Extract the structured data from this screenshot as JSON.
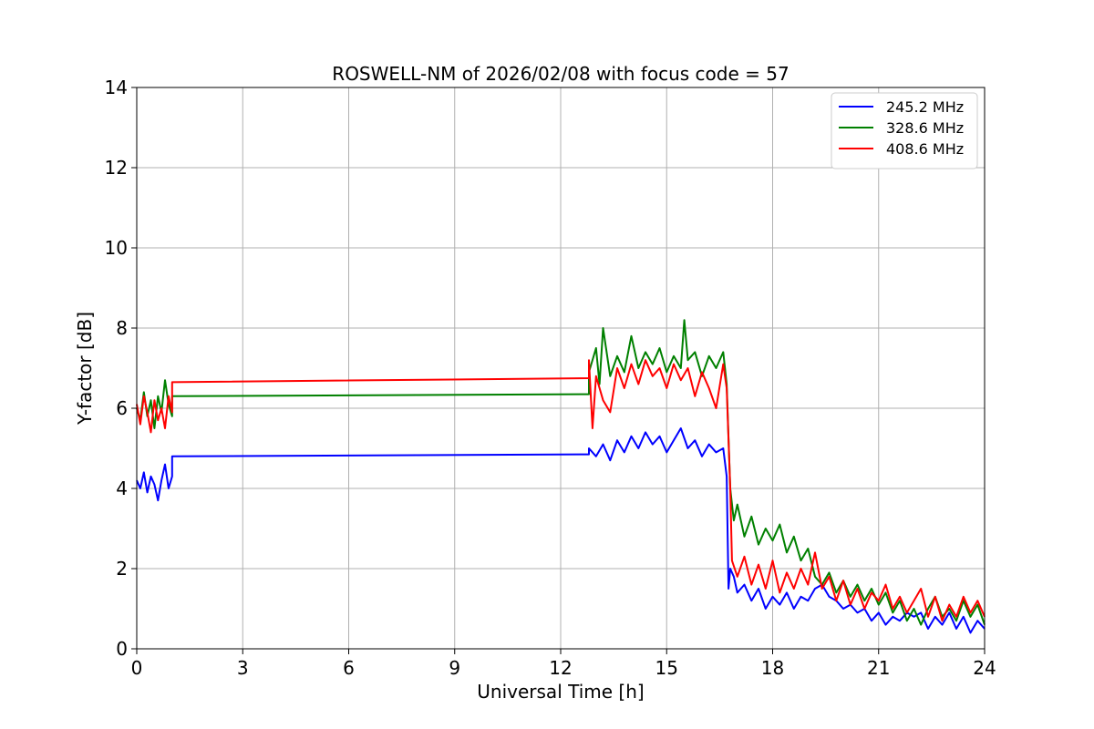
{
  "chart_data": {
    "type": "line",
    "title": "ROSWELL-NM of 2026/02/08 with focus code = 57",
    "xlabel": "Universal Time [h]",
    "ylabel": "Y-factor [dB]",
    "xlim": [
      0,
      24
    ],
    "ylim": [
      0,
      14
    ],
    "xticks": [
      0,
      3,
      6,
      9,
      12,
      15,
      18,
      21,
      24
    ],
    "yticks": [
      0,
      2,
      4,
      6,
      8,
      10,
      12,
      14
    ],
    "grid": true,
    "legend_position": "top-right",
    "series": [
      {
        "name": "245.2 MHz",
        "color": "#0000ff",
        "points": [
          [
            0.0,
            4.2
          ],
          [
            0.1,
            4.0
          ],
          [
            0.2,
            4.4
          ],
          [
            0.3,
            3.9
          ],
          [
            0.4,
            4.3
          ],
          [
            0.5,
            4.1
          ],
          [
            0.6,
            3.7
          ],
          [
            0.7,
            4.2
          ],
          [
            0.8,
            4.6
          ],
          [
            0.9,
            4.0
          ],
          [
            1.0,
            4.3
          ],
          [
            1.0,
            4.8
          ],
          [
            12.8,
            4.85
          ],
          [
            12.8,
            5.0
          ],
          [
            13.0,
            4.8
          ],
          [
            13.2,
            5.1
          ],
          [
            13.4,
            4.7
          ],
          [
            13.6,
            5.2
          ],
          [
            13.8,
            4.9
          ],
          [
            14.0,
            5.3
          ],
          [
            14.2,
            5.0
          ],
          [
            14.4,
            5.4
          ],
          [
            14.6,
            5.1
          ],
          [
            14.8,
            5.3
          ],
          [
            15.0,
            4.9
          ],
          [
            15.2,
            5.2
          ],
          [
            15.4,
            5.5
          ],
          [
            15.6,
            5.0
          ],
          [
            15.8,
            5.2
          ],
          [
            16.0,
            4.8
          ],
          [
            16.2,
            5.1
          ],
          [
            16.4,
            4.9
          ],
          [
            16.6,
            5.0
          ],
          [
            16.7,
            4.3
          ],
          [
            16.75,
            1.5
          ],
          [
            16.8,
            2.0
          ],
          [
            16.9,
            1.8
          ],
          [
            17.0,
            1.4
          ],
          [
            17.2,
            1.6
          ],
          [
            17.4,
            1.2
          ],
          [
            17.6,
            1.5
          ],
          [
            17.8,
            1.0
          ],
          [
            18.0,
            1.3
          ],
          [
            18.2,
            1.1
          ],
          [
            18.4,
            1.4
          ],
          [
            18.6,
            1.0
          ],
          [
            18.8,
            1.3
          ],
          [
            19.0,
            1.2
          ],
          [
            19.2,
            1.5
          ],
          [
            19.4,
            1.6
          ],
          [
            19.6,
            1.3
          ],
          [
            19.8,
            1.2
          ],
          [
            20.0,
            1.0
          ],
          [
            20.2,
            1.1
          ],
          [
            20.4,
            0.9
          ],
          [
            20.6,
            1.0
          ],
          [
            20.8,
            0.7
          ],
          [
            21.0,
            0.9
          ],
          [
            21.2,
            0.6
          ],
          [
            21.4,
            0.8
          ],
          [
            21.6,
            0.7
          ],
          [
            21.8,
            0.9
          ],
          [
            22.0,
            0.8
          ],
          [
            22.2,
            0.9
          ],
          [
            22.4,
            0.5
          ],
          [
            22.6,
            0.8
          ],
          [
            22.8,
            0.6
          ],
          [
            23.0,
            0.9
          ],
          [
            23.2,
            0.5
          ],
          [
            23.4,
            0.8
          ],
          [
            23.6,
            0.4
          ],
          [
            23.8,
            0.7
          ],
          [
            24.0,
            0.5
          ]
        ]
      },
      {
        "name": "328.6 MHz",
        "color": "#008000",
        "points": [
          [
            0.0,
            6.0
          ],
          [
            0.1,
            5.7
          ],
          [
            0.2,
            6.4
          ],
          [
            0.3,
            5.8
          ],
          [
            0.4,
            6.2
          ],
          [
            0.5,
            5.5
          ],
          [
            0.6,
            6.3
          ],
          [
            0.7,
            5.9
          ],
          [
            0.8,
            6.7
          ],
          [
            0.9,
            6.1
          ],
          [
            1.0,
            5.8
          ],
          [
            1.0,
            6.3
          ],
          [
            12.8,
            6.35
          ],
          [
            12.8,
            6.9
          ],
          [
            13.0,
            7.5
          ],
          [
            13.1,
            6.6
          ],
          [
            13.2,
            8.0
          ],
          [
            13.4,
            6.8
          ],
          [
            13.6,
            7.3
          ],
          [
            13.8,
            6.9
          ],
          [
            14.0,
            7.8
          ],
          [
            14.2,
            7.0
          ],
          [
            14.4,
            7.4
          ],
          [
            14.6,
            7.1
          ],
          [
            14.8,
            7.5
          ],
          [
            15.0,
            6.9
          ],
          [
            15.2,
            7.3
          ],
          [
            15.4,
            7.0
          ],
          [
            15.5,
            8.2
          ],
          [
            15.6,
            7.2
          ],
          [
            15.8,
            7.4
          ],
          [
            16.0,
            6.8
          ],
          [
            16.2,
            7.3
          ],
          [
            16.4,
            7.0
          ],
          [
            16.6,
            7.4
          ],
          [
            16.7,
            6.6
          ],
          [
            16.8,
            4.0
          ],
          [
            16.9,
            3.2
          ],
          [
            17.0,
            3.6
          ],
          [
            17.2,
            2.8
          ],
          [
            17.4,
            3.3
          ],
          [
            17.6,
            2.6
          ],
          [
            17.8,
            3.0
          ],
          [
            18.0,
            2.7
          ],
          [
            18.2,
            3.1
          ],
          [
            18.4,
            2.4
          ],
          [
            18.6,
            2.8
          ],
          [
            18.8,
            2.2
          ],
          [
            19.0,
            2.5
          ],
          [
            19.2,
            1.8
          ],
          [
            19.4,
            1.6
          ],
          [
            19.6,
            1.9
          ],
          [
            19.8,
            1.4
          ],
          [
            20.0,
            1.7
          ],
          [
            20.2,
            1.3
          ],
          [
            20.4,
            1.6
          ],
          [
            20.6,
            1.2
          ],
          [
            20.8,
            1.5
          ],
          [
            21.0,
            1.1
          ],
          [
            21.2,
            1.4
          ],
          [
            21.4,
            0.9
          ],
          [
            21.6,
            1.2
          ],
          [
            21.8,
            0.7
          ],
          [
            22.0,
            1.0
          ],
          [
            22.2,
            0.6
          ],
          [
            22.4,
            1.0
          ],
          [
            22.6,
            1.3
          ],
          [
            22.8,
            0.8
          ],
          [
            23.0,
            1.0
          ],
          [
            23.2,
            0.7
          ],
          [
            23.4,
            1.2
          ],
          [
            23.6,
            0.8
          ],
          [
            23.8,
            1.1
          ],
          [
            24.0,
            0.6
          ]
        ]
      },
      {
        "name": "408.6 MHz",
        "color": "#ff0000",
        "points": [
          [
            0.0,
            6.1
          ],
          [
            0.1,
            5.6
          ],
          [
            0.2,
            6.3
          ],
          [
            0.3,
            5.9
          ],
          [
            0.4,
            5.4
          ],
          [
            0.5,
            6.2
          ],
          [
            0.6,
            5.7
          ],
          [
            0.7,
            6.0
          ],
          [
            0.8,
            5.5
          ],
          [
            0.9,
            6.3
          ],
          [
            1.0,
            5.9
          ],
          [
            1.0,
            6.65
          ],
          [
            12.8,
            6.75
          ],
          [
            12.8,
            7.2
          ],
          [
            12.9,
            5.5
          ],
          [
            13.0,
            6.8
          ],
          [
            13.2,
            6.2
          ],
          [
            13.4,
            5.9
          ],
          [
            13.6,
            7.0
          ],
          [
            13.8,
            6.5
          ],
          [
            14.0,
            7.1
          ],
          [
            14.2,
            6.6
          ],
          [
            14.4,
            7.2
          ],
          [
            14.6,
            6.8
          ],
          [
            14.8,
            7.0
          ],
          [
            15.0,
            6.5
          ],
          [
            15.2,
            7.1
          ],
          [
            15.4,
            6.7
          ],
          [
            15.6,
            7.0
          ],
          [
            15.8,
            6.3
          ],
          [
            16.0,
            6.9
          ],
          [
            16.2,
            6.5
          ],
          [
            16.4,
            6.0
          ],
          [
            16.6,
            7.1
          ],
          [
            16.7,
            6.5
          ],
          [
            16.8,
            4.0
          ],
          [
            16.85,
            2.2
          ],
          [
            17.0,
            1.8
          ],
          [
            17.2,
            2.3
          ],
          [
            17.4,
            1.6
          ],
          [
            17.6,
            2.1
          ],
          [
            17.8,
            1.5
          ],
          [
            18.0,
            2.2
          ],
          [
            18.2,
            1.4
          ],
          [
            18.4,
            1.9
          ],
          [
            18.6,
            1.5
          ],
          [
            18.8,
            2.0
          ],
          [
            19.0,
            1.6
          ],
          [
            19.2,
            2.4
          ],
          [
            19.4,
            1.5
          ],
          [
            19.6,
            1.8
          ],
          [
            19.8,
            1.2
          ],
          [
            20.0,
            1.7
          ],
          [
            20.2,
            1.1
          ],
          [
            20.4,
            1.5
          ],
          [
            20.6,
            1.0
          ],
          [
            20.8,
            1.4
          ],
          [
            21.0,
            1.2
          ],
          [
            21.2,
            1.6
          ],
          [
            21.4,
            1.0
          ],
          [
            21.6,
            1.3
          ],
          [
            21.8,
            0.9
          ],
          [
            22.0,
            1.2
          ],
          [
            22.2,
            1.5
          ],
          [
            22.4,
            0.8
          ],
          [
            22.6,
            1.3
          ],
          [
            22.8,
            0.7
          ],
          [
            23.0,
            1.1
          ],
          [
            23.2,
            0.8
          ],
          [
            23.4,
            1.3
          ],
          [
            23.6,
            0.9
          ],
          [
            23.8,
            1.2
          ],
          [
            24.0,
            0.8
          ]
        ]
      }
    ]
  }
}
